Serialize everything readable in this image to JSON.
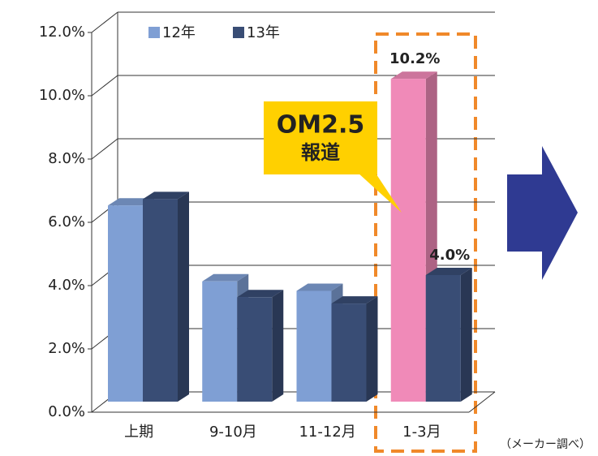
{
  "chart_data": {
    "type": "bar",
    "categories": [
      "上期",
      "9-10月",
      "11-12月",
      "1-3月"
    ],
    "series": [
      {
        "name": "12年",
        "color": "#7f9fd4",
        "colors": [
          "#7f9fd4",
          "#7f9fd4",
          "#7f9fd4",
          "#f08ab8"
        ],
        "values": [
          6.2,
          3.8,
          3.5,
          10.2
        ],
        "value_labels": [
          null,
          null,
          null,
          "10.2%"
        ]
      },
      {
        "name": "13年",
        "color": "#394d75",
        "values": [
          6.4,
          3.3,
          3.1,
          4.0
        ],
        "value_labels": [
          null,
          null,
          null,
          "4.0%"
        ]
      }
    ],
    "ylim": [
      0,
      12
    ],
    "yticks": [
      {
        "value": 0,
        "label": "0.0%"
      },
      {
        "value": 2,
        "label": "2.0%"
      },
      {
        "value": 4,
        "label": "4.0%"
      },
      {
        "value": 6,
        "label": "6.0%"
      },
      {
        "value": 8,
        "label": "8.0%"
      },
      {
        "value": 10,
        "label": "10.0%"
      },
      {
        "value": 12,
        "label": "12.0%"
      }
    ],
    "grid": true,
    "annotation": [
      "OM2.5",
      "報道"
    ],
    "source": "（メーカー調べ）"
  }
}
